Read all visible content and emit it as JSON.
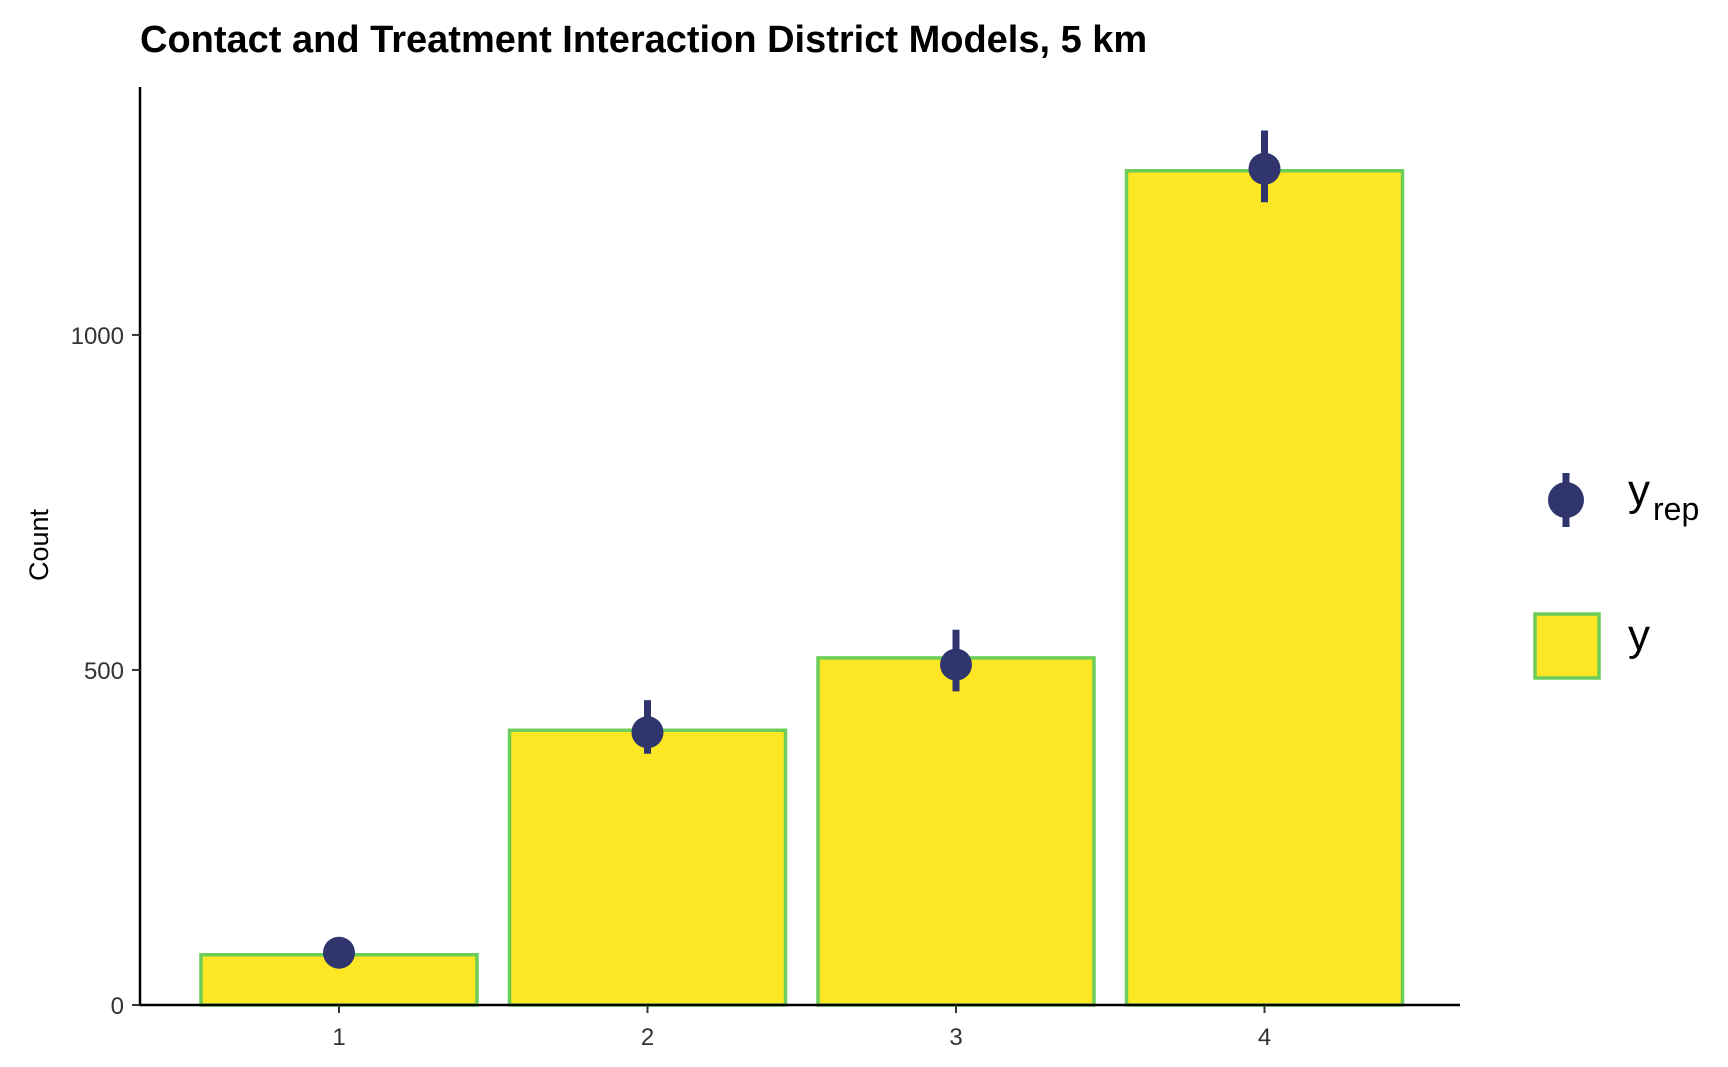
{
  "chart_data": {
    "type": "bar",
    "title": "Contact and Treatment Interaction District Models, 5 km",
    "xlabel": "",
    "ylabel": "Count",
    "categories": [
      "1",
      "2",
      "3",
      "4"
    ],
    "ylim": [
      0,
      1370
    ],
    "y_ticks": [
      0,
      500,
      1000
    ],
    "y_tick_labels": [
      "0",
      "500",
      "1000"
    ],
    "grid": false,
    "legend_position": "right",
    "series": [
      {
        "name": "y",
        "kind": "bar",
        "values": [
          75,
          410,
          518,
          1245
        ],
        "fill_color": "#FDE725",
        "stroke_color": "#6CCE59"
      },
      {
        "name": "y_rep",
        "kind": "pointrange",
        "median": [
          78,
          407,
          508,
          1248
        ],
        "lower": [
          68,
          375,
          468,
          1198
        ],
        "upper": [
          88,
          455,
          560,
          1305
        ],
        "color": "#31356E"
      }
    ],
    "legend": [
      {
        "label": "y",
        "subscript": "rep",
        "marker": "pointrange"
      },
      {
        "label": "y",
        "subscript": "",
        "marker": "bar"
      }
    ]
  }
}
